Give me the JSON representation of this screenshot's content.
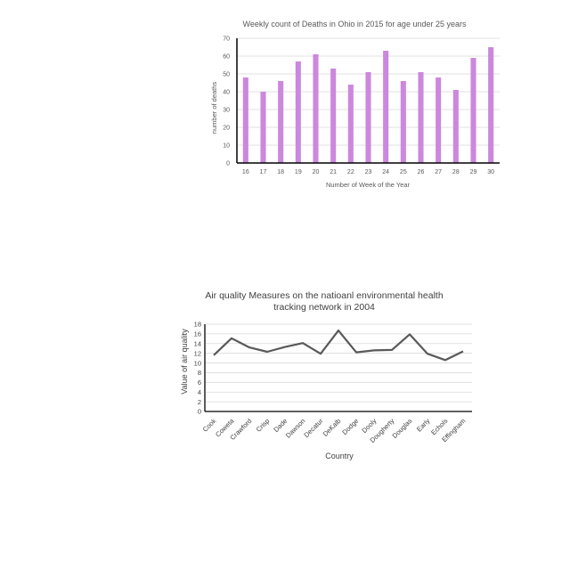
{
  "chart_data": [
    {
      "type": "bar",
      "title": "Weekly count of Deaths in Ohio in 2015 for age under 25 years",
      "xlabel": "Number of Week of the Year",
      "ylabel": "number of deaths",
      "categories": [
        "16",
        "17",
        "18",
        "19",
        "20",
        "21",
        "22",
        "23",
        "24",
        "25",
        "26",
        "27",
        "28",
        "29",
        "30"
      ],
      "values": [
        48,
        40,
        46,
        57,
        61,
        53,
        44,
        51,
        63,
        46,
        51,
        48,
        41,
        59,
        65
      ],
      "ylim": [
        0,
        70
      ],
      "yticks": [
        0,
        10,
        20,
        30,
        40,
        50,
        60,
        70
      ],
      "grid": true,
      "bar_color": "#cc88dd"
    },
    {
      "type": "line",
      "title_lines": [
        "Air quality Measures on the natioanl environmental health",
        "tracking network in 2004"
      ],
      "xlabel": "Country",
      "ylabel": "Value of air quality",
      "categories": [
        "Cook",
        "Coweta",
        "Crawford",
        "Crisp",
        "Dade",
        "Dawson",
        "Decatur",
        "DeKalb",
        "Dodge",
        "Dooly",
        "Dougherty",
        "Douglas",
        "Early",
        "Echols",
        "Effingham"
      ],
      "values": [
        11.6,
        15.1,
        13.2,
        12.3,
        13.3,
        14.1,
        11.9,
        16.7,
        12.2,
        12.6,
        12.7,
        15.9,
        11.9,
        10.6,
        12.4
      ],
      "ylim": [
        0,
        18
      ],
      "yticks": [
        0,
        2,
        4,
        6,
        8,
        10,
        12,
        14,
        16,
        18
      ],
      "grid": true,
      "line_color": "#595959"
    }
  ]
}
